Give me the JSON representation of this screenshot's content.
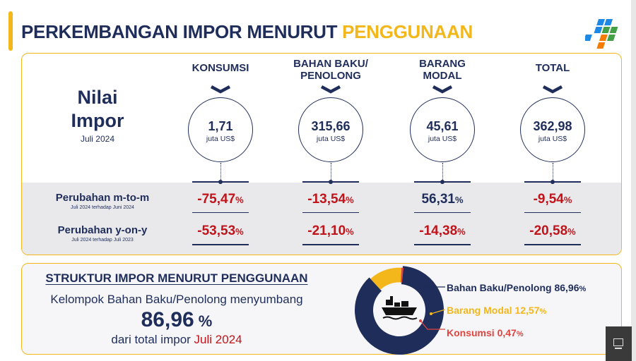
{
  "header": {
    "title_part1": "PERKEMBANGAN IMPOR MENURUT",
    "title_part2": "PENGGUNAAN"
  },
  "nilai": {
    "line1": "Nilai",
    "line2": "Impor",
    "period": "Juli 2024"
  },
  "columns": [
    {
      "head": "KONSUMSI",
      "value": "1,71",
      "unit": "juta US$",
      "mtm": "-75,47",
      "yoy": "-53,53"
    },
    {
      "head": "BAHAN BAKU/\nPENOLONG",
      "value": "315,66",
      "unit": "juta US$",
      "mtm": "-13,54",
      "yoy": "-21,10"
    },
    {
      "head": "BARANG\nMODAL",
      "value": "45,61",
      "unit": "juta US$",
      "mtm": "56,31",
      "yoy": "-14,38"
    },
    {
      "head": "TOTAL",
      "value": "362,98",
      "unit": "juta US$",
      "mtm": "-9,54",
      "yoy": "-20,58"
    }
  ],
  "pct_sign": "%",
  "rows": {
    "mtm_label": "Perubahan m-to-m",
    "mtm_sub": "Juli 2024 terhadap Juni 2024",
    "yoy_label": "Perubahan y-on-y",
    "yoy_sub": "Juli 2024 terhadap Juli 2023"
  },
  "structure": {
    "title": "STRUKTUR IMPOR MENURUT PENGGUNAAN",
    "line1": "Kelompok Bahan Baku/Penolong menyumbang",
    "big_value": "86,96",
    "big_pct": " %",
    "line3": "dari total impor",
    "line3_period": "Juli 2024"
  },
  "chart_data": {
    "type": "pie",
    "donut": true,
    "slices": [
      {
        "label": "Bahan Baku/Penolong",
        "value": 86.96,
        "color": "#1f2d5a",
        "text": "Bahan Baku/Penolong 86,96"
      },
      {
        "label": "Barang Modal",
        "value": 12.57,
        "color": "#f3b71b",
        "text": "Barang Modal 12,57"
      },
      {
        "label": "Konsumsi",
        "value": 0.47,
        "color": "#e0443e",
        "text": "Konsumsi 0,47"
      }
    ]
  },
  "colors": {
    "navy": "#1f2d5a",
    "gold": "#f3b71b",
    "red": "#c0141a"
  },
  "icons": {
    "logo": "bps-logo",
    "center": "cargo-ship-icon",
    "corner": "presentation-icon"
  }
}
